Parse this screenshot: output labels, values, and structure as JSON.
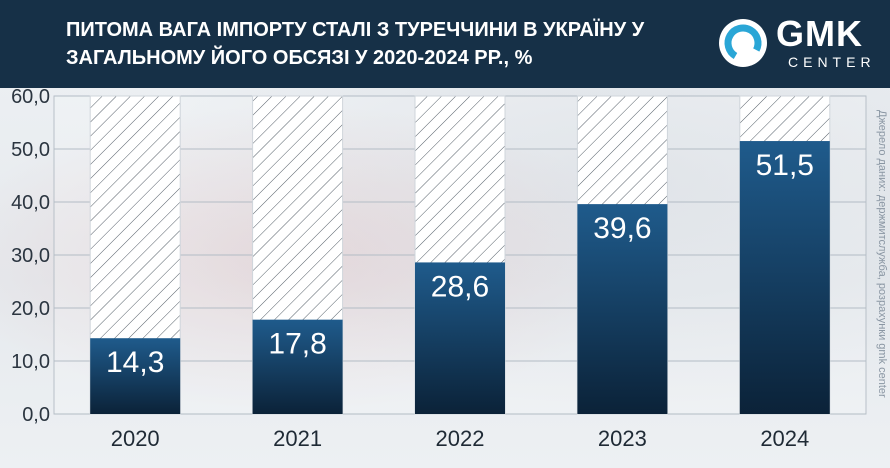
{
  "header": {
    "title": "ПИТОМА ВАГА ІМПОРТУ СТАЛІ З ТУРЕЧЧИНИ В УКРАЇНУ У ЗАГАЛЬНОМУ ЙОГО ОБСЯЗІ У 2020-2024 РР., %",
    "logo_text": "GMK",
    "logo_subtext": "CENTER",
    "logo_icon": "gmk-ring-icon"
  },
  "source_note": "Джерело даних: держмитслужба, розрахунки gmk center",
  "colors": {
    "header_bg": "#163047",
    "bar_top": "#1f5b8c",
    "bar_bottom": "#0b2238",
    "logo_accent": "#2aa6d6"
  },
  "chart_data": {
    "type": "bar",
    "categories": [
      "2020",
      "2021",
      "2022",
      "2023",
      "2024"
    ],
    "values": [
      14.3,
      17.8,
      28.6,
      39.6,
      51.5
    ],
    "value_labels": [
      "14,3",
      "17,8",
      "28,6",
      "39,6",
      "51,5"
    ],
    "yticks": [
      "0,0",
      "10,0",
      "20,0",
      "30,0",
      "40,0",
      "50,0",
      "60,0"
    ],
    "ylim": [
      0,
      60
    ],
    "grid": true,
    "background_bars": "hatched to 60",
    "title": "",
    "xlabel": "",
    "ylabel": ""
  }
}
